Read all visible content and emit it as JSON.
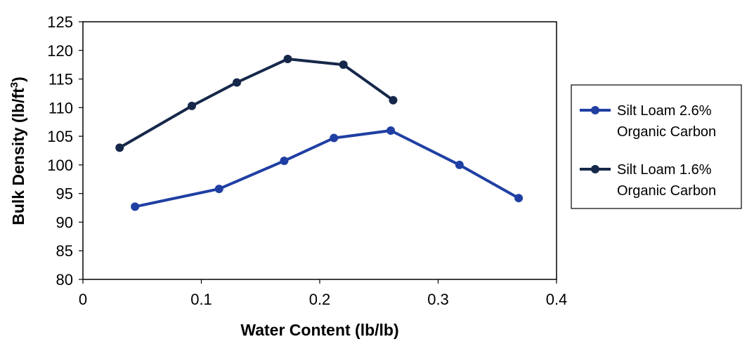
{
  "chart_data": {
    "type": "line",
    "title": "",
    "xlabel": "Water Content (lb/lb)",
    "ylabel_main": "Bulk Density (lb/ft",
    "ylabel_sup": "3",
    "ylabel_close": ")",
    "xlim": [
      0,
      0.4
    ],
    "ylim": [
      80,
      125
    ],
    "x_ticks": [
      0,
      0.1,
      0.2,
      0.3,
      0.4
    ],
    "x_tick_labels": [
      "0",
      "0.1",
      "0.2",
      "0.3",
      "0.4"
    ],
    "y_ticks": [
      80,
      85,
      90,
      95,
      100,
      105,
      110,
      115,
      120,
      125
    ],
    "y_tick_labels": [
      "80",
      "85",
      "90",
      "95",
      "100",
      "105",
      "110",
      "115",
      "120",
      "125"
    ],
    "grid": false,
    "legend_position": "right",
    "series": [
      {
        "name_line1": "Silt Loam 2.6%",
        "name_line2": "Organic Carbon",
        "color": "#1f3fa3",
        "x": [
          0.044,
          0.115,
          0.17,
          0.212,
          0.26,
          0.318,
          0.368
        ],
        "y": [
          92.7,
          95.8,
          100.7,
          104.7,
          106.0,
          100.0,
          94.2
        ]
      },
      {
        "name_line1": "Silt Loam 1.6%",
        "name_line2": "Organic Carbon",
        "color": "#16284a",
        "x": [
          0.031,
          0.092,
          0.13,
          0.173,
          0.22,
          0.262
        ],
        "y": [
          103.0,
          110.3,
          114.4,
          118.5,
          117.5,
          111.3
        ]
      }
    ]
  }
}
